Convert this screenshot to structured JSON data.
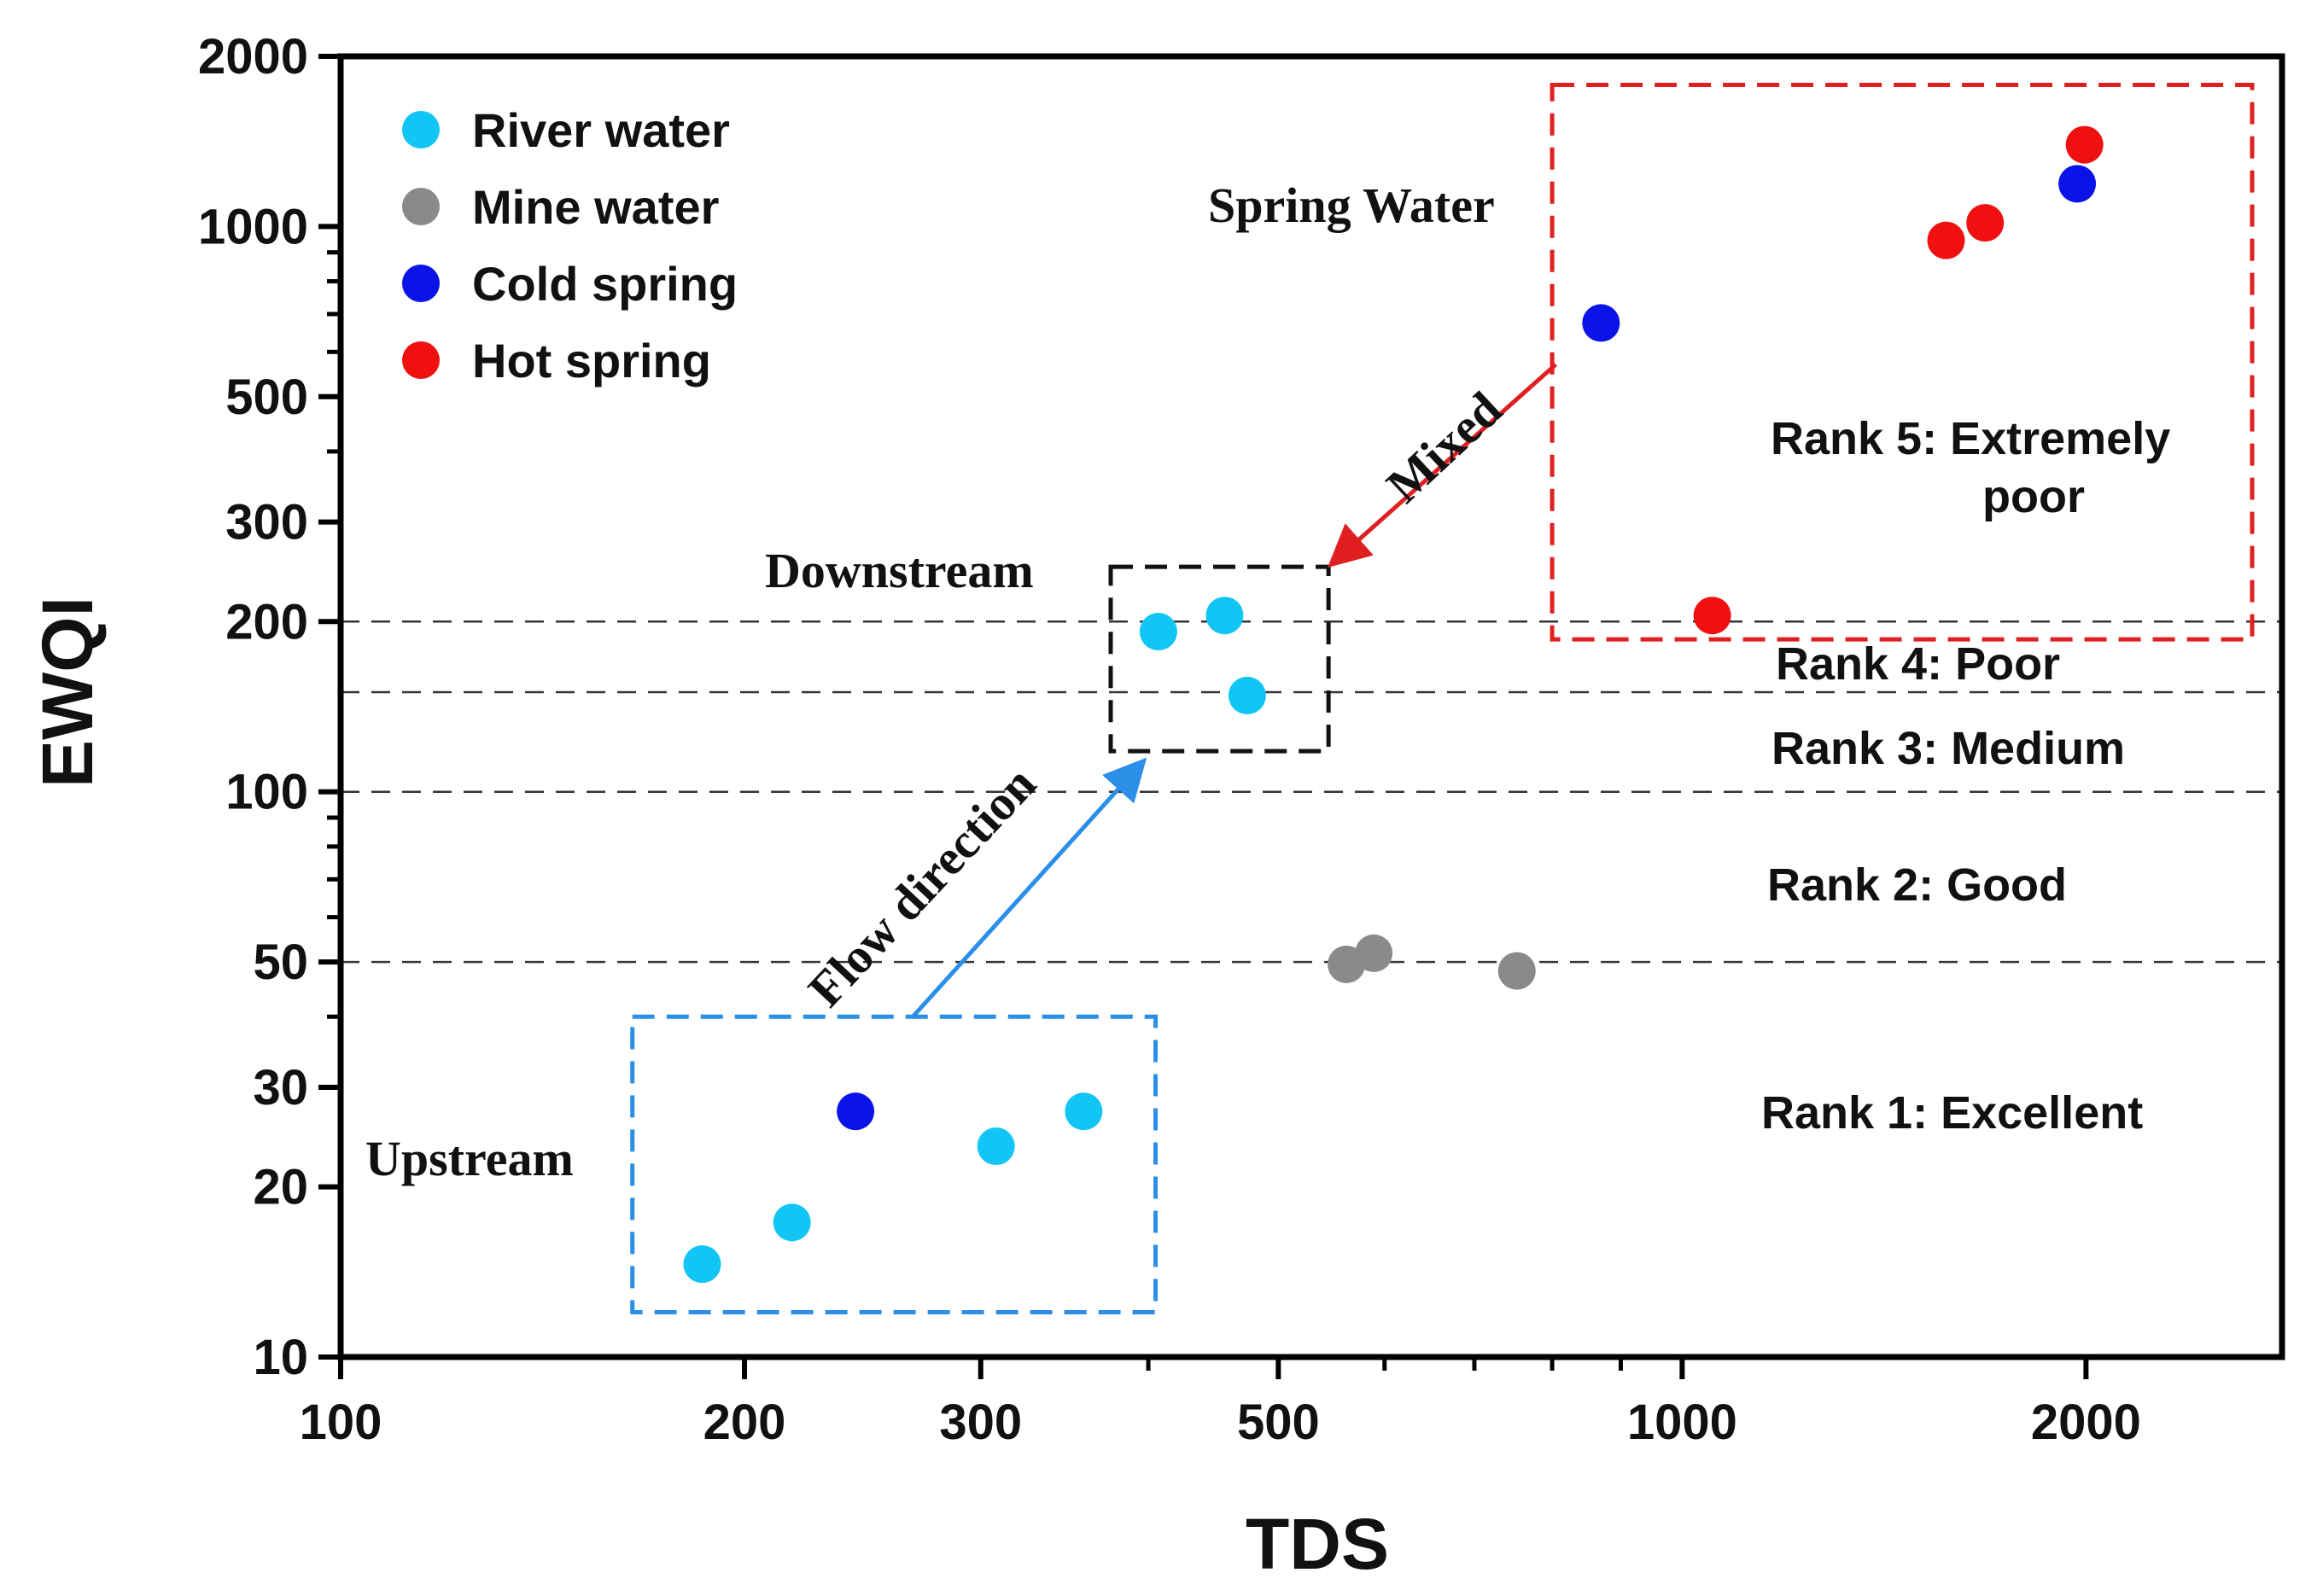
{
  "chart_data": {
    "type": "scatter",
    "xscale": "log",
    "yscale": "log",
    "xlabel": "TDS",
    "ylabel": "EWQI",
    "xlim": [
      100,
      2800
    ],
    "ylim": [
      10,
      2000
    ],
    "x_ticks": [
      {
        "value": 100,
        "label": "100"
      },
      {
        "value": 200,
        "label": "200"
      },
      {
        "value": 300,
        "label": "300"
      },
      {
        "value": 500,
        "label": "500"
      },
      {
        "value": 1000,
        "label": "1000"
      },
      {
        "value": 2000,
        "label": "2000"
      }
    ],
    "y_ticks": [
      {
        "value": 10,
        "label": "10"
      },
      {
        "value": 20,
        "label": "20"
      },
      {
        "value": 30,
        "label": "30"
      },
      {
        "value": 50,
        "label": "50"
      },
      {
        "value": 100,
        "label": "100"
      },
      {
        "value": 200,
        "label": "200"
      },
      {
        "value": 300,
        "label": "300"
      },
      {
        "value": 500,
        "label": "500"
      },
      {
        "value": 1000,
        "label": "1000"
      },
      {
        "value": 2000,
        "label": "2000"
      }
    ],
    "series": [
      {
        "name": "River water",
        "color": "#11c6f4",
        "points": [
          {
            "x": 186,
            "y": 14.6
          },
          {
            "x": 217,
            "y": 17.3
          },
          {
            "x": 308,
            "y": 23.6
          },
          {
            "x": 358,
            "y": 27.2
          },
          {
            "x": 407,
            "y": 192
          },
          {
            "x": 456,
            "y": 205
          },
          {
            "x": 474,
            "y": 148
          }
        ]
      },
      {
        "name": "Mine water",
        "color": "#8a8a8a",
        "points": [
          {
            "x": 562,
            "y": 49.5
          },
          {
            "x": 589,
            "y": 51.8
          },
          {
            "x": 753,
            "y": 48.2
          }
        ]
      },
      {
        "name": "Cold spring",
        "color": "#0a14e6",
        "points": [
          {
            "x": 242,
            "y": 27.2
          },
          {
            "x": 870,
            "y": 675
          },
          {
            "x": 1970,
            "y": 1190
          }
        ]
      },
      {
        "name": "Hot spring",
        "color": "#f01010",
        "points": [
          {
            "x": 1053,
            "y": 205
          },
          {
            "x": 1573,
            "y": 945
          },
          {
            "x": 1682,
            "y": 1015
          },
          {
            "x": 1995,
            "y": 1395
          }
        ]
      }
    ],
    "threshold_lines": [
      50,
      100,
      150,
      200
    ],
    "rank_labels": [
      {
        "text": "Rank 5: Extremely",
        "text2": "poor"
      },
      {
        "text": "Rank 4: Poor"
      },
      {
        "text": "Rank 3: Medium"
      },
      {
        "text": "Rank 2: Good"
      },
      {
        "text": "Rank 1: Excellent"
      }
    ],
    "annotations": {
      "spring_water": "Spring Water",
      "downstream": "Downstream",
      "upstream": "Upstream",
      "flow_direction": "Flow direction",
      "mixed": "Mixed"
    },
    "regions": {
      "upstream_box": {
        "x": [
          165,
          405
        ],
        "y": [
          12,
          40
        ]
      },
      "downstream_box": {
        "x": [
          375,
          545
        ],
        "y": [
          118,
          250
        ]
      },
      "spring_box": {
        "x": [
          800,
          2660
        ],
        "y": [
          186,
          1780
        ]
      }
    },
    "legend_position": "top-left"
  }
}
